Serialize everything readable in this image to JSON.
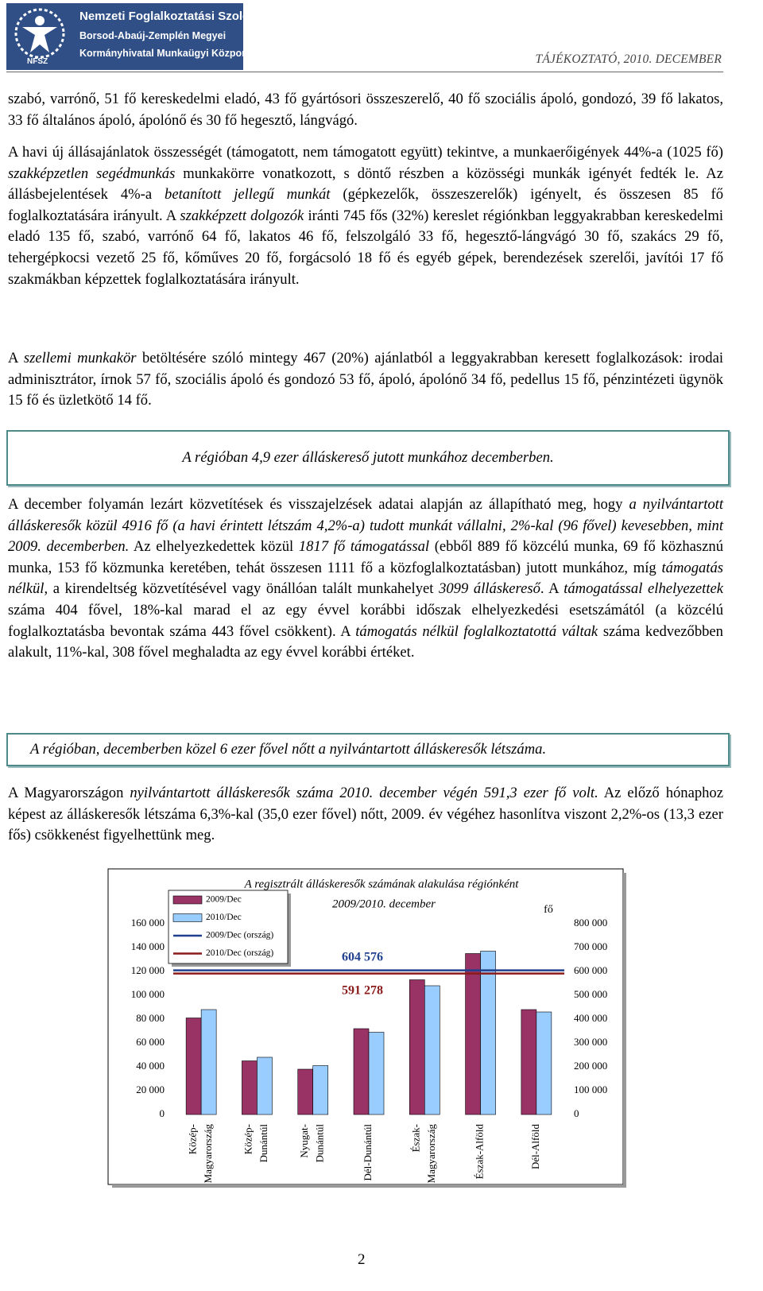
{
  "header": {
    "logo_lines": [
      "Nemzeti Foglalkoztatási Szolgálat",
      "Borsod-Abaúj-Zemplén Megyei",
      "Kormányhivatal Munkaügyi Központja"
    ],
    "logo_abbr": "NFSZ",
    "title": "TÁJÉKOZTATÓ, 2010. DECEMBER"
  },
  "paragraphs": [
    [
      "szabó, varrónő, 51 fő kereskedelmi eladó, 43 fő gyártósori összeszerelő, 40 fő szociális ápoló, gondozó, 39 fő lakatos, 33 fő általános ápoló, ápolónő és 30 fő hegesztő, lángvágó."
    ],
    [
      "A havi új állásajánlatok összességét (támogatott, nem támogatott együtt) tekintve, a munkaerőigények 44%-a (1025 fő) ",
      "szakképzetlen segédmunkás",
      " munkakörre vonatkozott, s döntő részben a közösségi munkák igényét fedték le. Az állásbejelentések 4%-a ",
      "betanított jellegű munkát",
      " (gépkezelők, összeszerelők) igényelt, és összesen 85 fő foglalkoztatására irányult. A ",
      "szakképzett dolgozók",
      " iránti 745 fős (32%) kereslet régiónkban leggyakrabban kereskedelmi eladó 135 fő, szabó, varrónő 64 fő, lakatos 46 fő, felszolgáló 33 fő, hegesztő-lángvágó 30 fő, szakács 29 fő, tehergépkocsi vezető 25 fő, kőműves 20 fő, forgácsoló 18 fő és egyéb gépek, berendezések szerelői, javítói 17 fő szakmákban képzettek foglalkoztatására irányult."
    ],
    [
      "A ",
      "szellemi munkakör",
      " betöltésére szóló mintegy 467 (20%) ajánlatból a leggyakrabban keresett foglalkozások: irodai adminisztrátor, írnok 57 fő, szociális ápoló és gondozó 53 fő, ápoló, ápolónő 34 fő, pedellus 15 fő, pénzintézeti ügynök 15 fő és üzletkötő 14 fő."
    ],
    [
      "A december folyamán lezárt közvetítések és visszajelzések adatai alapján az állapítható meg, hogy ",
      "a nyilvántartott álláskeresők közül 4916 fő (a havi érintett létszám 4,2%-a) tudott munkát vállalni, 2%-kal (96 fővel) kevesebben, mint 2009. decemberben.",
      " Az elhelyezkedettek közül ",
      "1817 fő támogatással",
      " (ebből 889 fő közcélú munka, 69 fő közhasznú munka, 153 fő közmunka keretében, tehát összesen 1111 fő a közfoglalkoztatásban) jutott munkához, míg ",
      "támogatás nélkül",
      ", a kirendeltség közvetítésével vagy önállóan talált munkahelyet ",
      "3099 álláskereső",
      ". A ",
      "támogatással elhelyezettek",
      " száma 404 fővel, 18%-kal marad el az egy évvel korábbi időszak elhelyezkedési esetszámától (a közcélú foglalkoztatásba bevontak száma 443 fővel csökkent). A ",
      "támogatás nélkül foglalkoztatottá váltak",
      " száma kedvezőbben alakult, 11%-kal, 308 fővel meghaladta az egy évvel korábbi értéket."
    ],
    [
      "A Magyarországon ",
      "nyilvántartott álláskeresők száma 2010. december végén 591,3 ezer fő volt.",
      " Az előző hónaphoz képest az álláskeresők létszáma 6,3%-kal (35,0 ezer fővel) nőtt, 2009. év végéhez hasonlítva viszont 2,2%-os (13,3 ezer fős) csökkenést figyelhettünk meg."
    ]
  ],
  "highlights": [
    "A régióban 4,9 ezer álláskereső jutott munkához decemberben.",
    "A régióban, decemberben közel 6 ezer fővel nőtt a nyilvántartott álláskeresők létszáma."
  ],
  "chart_data": {
    "type": "bar",
    "title": "A regisztrált álláskeresők számának alakulása régiónként",
    "subtitle": "2009/2010. december",
    "y2label": "fő",
    "categories": [
      "Közép-\nMagyarország",
      "Közép-\nDunántúl",
      "Nyugat-\nDunántúl",
      "Dél-Dunántúl",
      "Észak-\nMagyarország",
      "Észak-Alföld",
      "Dél-Alföld"
    ],
    "series": [
      {
        "name": "2009/Dec",
        "color": "#993366",
        "values": [
          81000,
          45000,
          38000,
          72000,
          113000,
          135000,
          88000
        ]
      },
      {
        "name": "2010/Dec",
        "color": "#99ccff",
        "values": [
          88000,
          48000,
          41000,
          69000,
          108000,
          137000,
          86000
        ]
      }
    ],
    "reference_lines": [
      {
        "name": "2009/Dec (ország)",
        "color": "#1f3f8f",
        "axis": "y2",
        "value": 604576,
        "value_label": "604 576"
      },
      {
        "name": "2010/Dec (ország)",
        "color": "#8b1a1a",
        "axis": "y2",
        "value": 591278,
        "value_label": "591 278"
      }
    ],
    "ylim": [
      0,
      180000
    ],
    "yticks": [
      0,
      {
        "value": 20000,
        "label": "20 000"
      },
      {
        "value": 40000,
        "label": "40 000"
      },
      {
        "value": 60000,
        "label": "60 000"
      },
      {
        "value": 80000,
        "label": "80 000"
      },
      {
        "value": 100000,
        "label": "100 000"
      },
      {
        "value": 120000,
        "label": "120 000"
      },
      {
        "value": 140000,
        "label": "140 000"
      },
      {
        "value": 160000,
        "label": "160 000"
      }
    ],
    "y2lim": [
      0,
      900000
    ],
    "y2ticks": [
      0,
      {
        "value": 100000,
        "label": "100 000"
      },
      {
        "value": 200000,
        "label": "200 000"
      },
      {
        "value": 300000,
        "label": "300 000"
      },
      {
        "value": 400000,
        "label": "400 000"
      },
      {
        "value": 500000,
        "label": "500 000"
      },
      {
        "value": 600000,
        "label": "600 000"
      },
      {
        "value": 700000,
        "label": "700 000"
      },
      {
        "value": 800000,
        "label": "800 000"
      }
    ],
    "legend": "upper left",
    "grid": false
  },
  "page_number": "2"
}
